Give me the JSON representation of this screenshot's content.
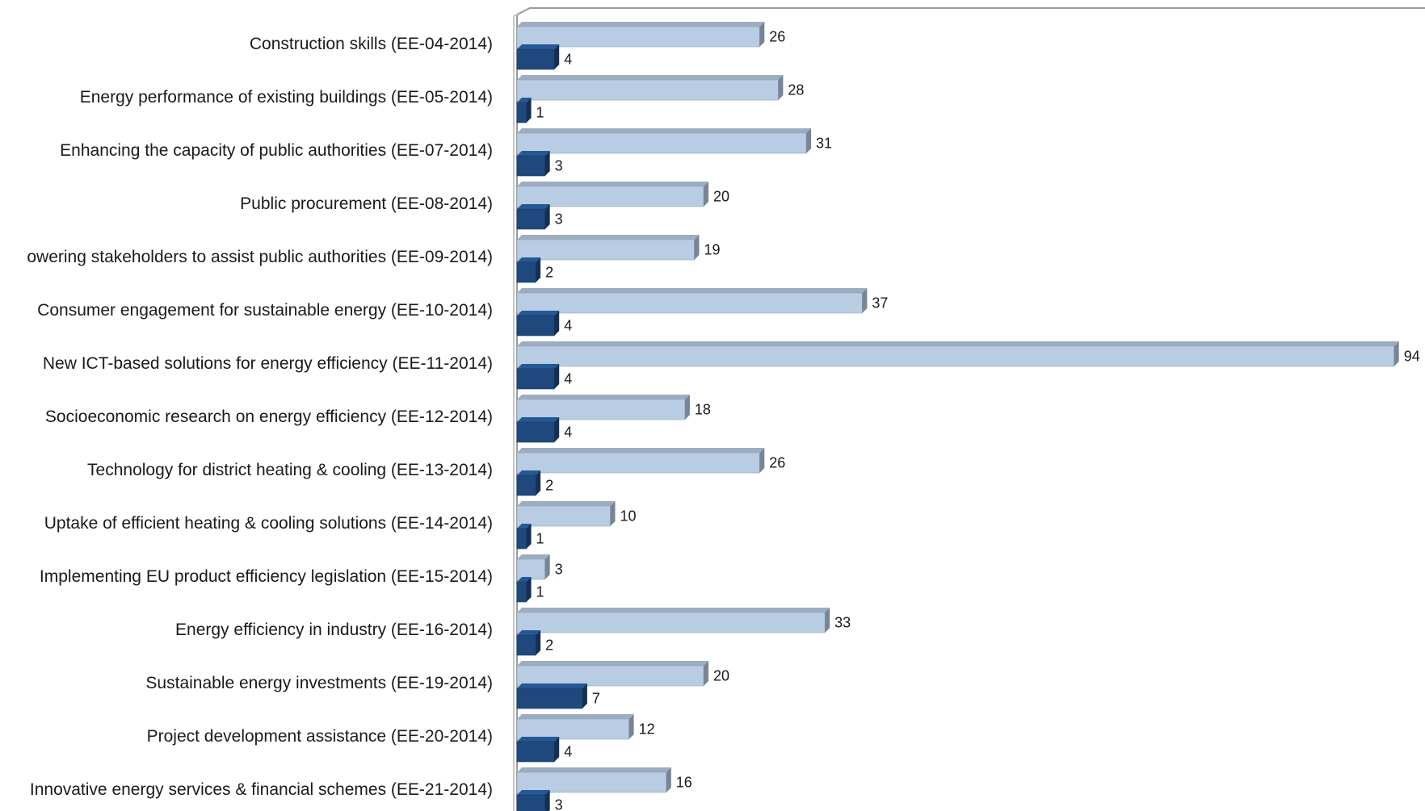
{
  "chart_data": {
    "type": "bar",
    "orientation": "horizontal",
    "style": "3d",
    "grid": false,
    "legend": "none",
    "xlim": [
      0,
      94
    ],
    "categories": [
      "Construction skills (EE-04-2014)",
      "Energy performance of existing buildings (EE-05-2014)",
      "Enhancing the capacity of public authorities (EE-07-2014)",
      "Public procurement (EE-08-2014)",
      "owering stakeholders to assist public authorities (EE-09-2014)",
      "Consumer engagement for sustainable energy (EE-10-2014)",
      "New ICT-based solutions for energy efficiency (EE-11-2014)",
      "Socioeconomic research on energy efficiency (EE-12-2014)",
      "Technology for district heating & cooling (EE-13-2014)",
      "Uptake of efficient heating & cooling solutions (EE-14-2014)",
      "Implementing EU product efficiency legislation (EE-15-2014)",
      "Energy efficiency in industry (EE-16-2014)",
      "Sustainable energy investments (EE-19-2014)",
      "Project development assistance (EE-20-2014)",
      "Innovative energy services & financial schemes (EE-21-2014)"
    ],
    "series": [
      {
        "color": "#b8cce4",
        "values": [
          26,
          28,
          31,
          20,
          19,
          37,
          94,
          18,
          26,
          10,
          3,
          33,
          20,
          12,
          16
        ]
      },
      {
        "color": "#1f497d",
        "values": [
          4,
          1,
          3,
          3,
          2,
          4,
          4,
          4,
          2,
          1,
          1,
          2,
          7,
          4,
          3
        ]
      }
    ]
  }
}
